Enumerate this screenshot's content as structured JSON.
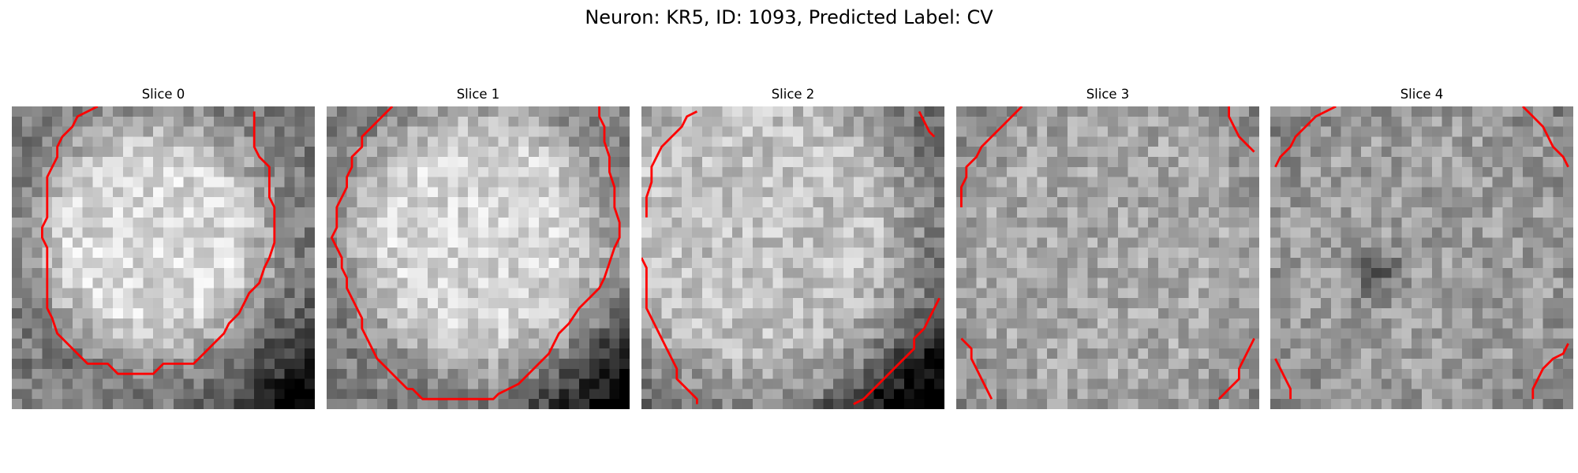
{
  "title": "Neuron: KR5, ID: 1093, Predicted Label: CV",
  "colors": {
    "contour": "#ff0000",
    "background": "#ffffff"
  },
  "colormap": "gray",
  "grid_size": 30,
  "slices": [
    {
      "label": "Slice 0",
      "brightness": {
        "center": 0.85,
        "edge": 0.48,
        "cx": 14,
        "cy": 13,
        "r": 12,
        "dark_corner": "bottom-right"
      },
      "contours": [
        [
          [
            8.5,
            0
          ],
          [
            7.5,
            0.5
          ],
          [
            6.5,
            1
          ],
          [
            6,
            2
          ],
          [
            5,
            3
          ],
          [
            4.5,
            4
          ],
          [
            4.5,
            5
          ],
          [
            4,
            6
          ],
          [
            3.5,
            7
          ],
          [
            3.5,
            9
          ],
          [
            3.5,
            11
          ],
          [
            3,
            12
          ],
          [
            3,
            13
          ],
          [
            3.5,
            14
          ],
          [
            3.5,
            16
          ],
          [
            3.5,
            18
          ],
          [
            3.5,
            20
          ],
          [
            4,
            21
          ],
          [
            4.5,
            22.5
          ],
          [
            5.5,
            23.5
          ],
          [
            6.5,
            24.5
          ],
          [
            7.5,
            25.5
          ],
          [
            8.5,
            25.5
          ],
          [
            9.5,
            25.5
          ],
          [
            10.5,
            26.5
          ],
          [
            11.5,
            26.5
          ],
          [
            13,
            26.5
          ],
          [
            14,
            26.5
          ],
          [
            15,
            25.5
          ],
          [
            16.5,
            25.5
          ],
          [
            18,
            25.5
          ],
          [
            19,
            24.5
          ],
          [
            20,
            23.5
          ],
          [
            21,
            22.5
          ],
          [
            21.5,
            21.5
          ],
          [
            22.5,
            20.5
          ],
          [
            23,
            19.5
          ],
          [
            23.5,
            18.5
          ],
          [
            24.5,
            17.5
          ],
          [
            25,
            16
          ],
          [
            25.5,
            15
          ],
          [
            26,
            13.5
          ],
          [
            26,
            12
          ],
          [
            26,
            10
          ],
          [
            25.5,
            9
          ],
          [
            25.5,
            7.5
          ],
          [
            25.5,
            6
          ],
          [
            24.5,
            5
          ],
          [
            24,
            4
          ],
          [
            24,
            2.5
          ],
          [
            24,
            0.5
          ]
        ]
      ]
    },
    {
      "label": "Slice 1",
      "brightness": {
        "center": 0.84,
        "edge": 0.5,
        "cx": 15,
        "cy": 13,
        "r": 13,
        "dark_corner": "bottom-right"
      },
      "contours": [
        [
          [
            6.5,
            0
          ],
          [
            5.5,
            1
          ],
          [
            4.5,
            2
          ],
          [
            3.5,
            3
          ],
          [
            3.5,
            4
          ],
          [
            2.5,
            5
          ],
          [
            2.5,
            6
          ],
          [
            2,
            7
          ],
          [
            2,
            8
          ],
          [
            1.5,
            9
          ],
          [
            1,
            10
          ],
          [
            1,
            11
          ],
          [
            1,
            12
          ],
          [
            0.5,
            13
          ],
          [
            1,
            14
          ],
          [
            1.5,
            15
          ],
          [
            1.5,
            16
          ],
          [
            2,
            17
          ],
          [
            2,
            18
          ],
          [
            2.5,
            19
          ],
          [
            3,
            20
          ],
          [
            3.5,
            21
          ],
          [
            3.5,
            22
          ],
          [
            4,
            23
          ],
          [
            4.5,
            24
          ],
          [
            5,
            25
          ],
          [
            6,
            26
          ],
          [
            7,
            27
          ],
          [
            8,
            28
          ],
          [
            8.5,
            28
          ],
          [
            9.5,
            29
          ],
          [
            10.5,
            29
          ],
          [
            12,
            29
          ],
          [
            13.5,
            29
          ],
          [
            15,
            29
          ],
          [
            16.5,
            29
          ],
          [
            17,
            28.5
          ],
          [
            18,
            28
          ],
          [
            19,
            27.5
          ],
          [
            20,
            26.5
          ],
          [
            21,
            25.5
          ],
          [
            22,
            24.5
          ],
          [
            22.5,
            23.5
          ],
          [
            23,
            22.5
          ],
          [
            24,
            21.5
          ],
          [
            25,
            20
          ],
          [
            26,
            19
          ],
          [
            27,
            18
          ],
          [
            27.5,
            17
          ],
          [
            28,
            15.5
          ],
          [
            28.5,
            14
          ],
          [
            29,
            13
          ],
          [
            29,
            11.5
          ],
          [
            28.5,
            10
          ],
          [
            28.5,
            8
          ],
          [
            28,
            6.5
          ],
          [
            28,
            5
          ],
          [
            27.5,
            3.5
          ],
          [
            27.5,
            2
          ],
          [
            27,
            1
          ],
          [
            27,
            0
          ]
        ]
      ]
    },
    {
      "label": "Slice 2",
      "brightness": {
        "center": 0.76,
        "edge": 0.4,
        "cx": 11,
        "cy": 12,
        "r": 17,
        "dark_corner": "bottom-right"
      },
      "contours": [
        [
          [
            5.5,
            0.5
          ],
          [
            4.5,
            1
          ],
          [
            4,
            2
          ],
          [
            3,
            3
          ],
          [
            2,
            4
          ],
          [
            1.5,
            5
          ],
          [
            1,
            6
          ],
          [
            1,
            7.5
          ],
          [
            0.5,
            9
          ],
          [
            0.5,
            11
          ]
        ],
        [
          [
            0,
            15
          ],
          [
            0.5,
            16
          ],
          [
            0.5,
            18
          ],
          [
            0.5,
            20
          ],
          [
            1,
            21
          ],
          [
            1.5,
            22
          ],
          [
            2,
            23
          ],
          [
            2.5,
            24
          ],
          [
            3,
            25
          ],
          [
            3.5,
            26
          ],
          [
            3.5,
            27
          ],
          [
            4.5,
            28
          ],
          [
            5.5,
            29
          ],
          [
            5.5,
            29.5
          ]
        ],
        [
          [
            27.5,
            0.5
          ],
          [
            28,
            1.5
          ],
          [
            28.5,
            2.5
          ],
          [
            29,
            3
          ]
        ],
        [
          [
            21,
            29.5
          ],
          [
            22,
            29
          ],
          [
            23,
            28
          ],
          [
            24,
            27
          ],
          [
            25,
            26
          ],
          [
            26,
            25
          ],
          [
            27,
            24
          ],
          [
            27,
            23
          ],
          [
            28,
            22
          ],
          [
            28.5,
            21
          ],
          [
            29,
            20
          ],
          [
            29.5,
            19
          ]
        ]
      ]
    },
    {
      "label": "Slice 3",
      "brightness": {
        "center": 0.66,
        "edge": 0.5,
        "cx": 15,
        "cy": 15,
        "r": 18,
        "dark_corner": "none"
      },
      "contours": [
        [
          [
            6.5,
            0
          ],
          [
            5.5,
            1
          ],
          [
            4.5,
            2
          ],
          [
            3.5,
            3
          ],
          [
            2.5,
            4
          ],
          [
            2,
            5
          ],
          [
            1,
            6
          ],
          [
            1,
            7
          ],
          [
            0.5,
            8
          ],
          [
            0.5,
            10
          ]
        ],
        [
          [
            27,
            0
          ],
          [
            27,
            1
          ],
          [
            27.5,
            2
          ],
          [
            28,
            3
          ],
          [
            29,
            4
          ],
          [
            29.5,
            4.5
          ]
        ],
        [
          [
            0.5,
            23
          ],
          [
            1.5,
            24
          ],
          [
            1.5,
            25
          ],
          [
            2,
            26
          ],
          [
            2.5,
            27
          ],
          [
            3,
            28
          ],
          [
            3.5,
            29
          ]
        ],
        [
          [
            26,
            29
          ],
          [
            27,
            28
          ],
          [
            28,
            27
          ],
          [
            28,
            26
          ],
          [
            28.5,
            25
          ],
          [
            29,
            24
          ],
          [
            29.5,
            23
          ]
        ]
      ]
    },
    {
      "label": "Slice 4",
      "brightness": {
        "center": 0.62,
        "edge": 0.5,
        "cx": 15,
        "cy": 15,
        "r": 18,
        "dark_corner": "none",
        "dark_spot": [
          10,
          16,
          4
        ]
      },
      "contours": [
        [
          [
            6.5,
            0
          ],
          [
            5.5,
            0.5
          ],
          [
            4.5,
            1
          ],
          [
            3.5,
            2
          ],
          [
            2.5,
            3
          ],
          [
            2,
            4
          ],
          [
            1,
            5
          ],
          [
            0.5,
            6
          ]
        ],
        [
          [
            25,
            0
          ],
          [
            26,
            1
          ],
          [
            27,
            2
          ],
          [
            27.5,
            3
          ],
          [
            28,
            4
          ],
          [
            29,
            5
          ],
          [
            29.5,
            6
          ]
        ],
        [
          [
            0.5,
            25
          ],
          [
            1,
            26
          ],
          [
            1.5,
            27
          ],
          [
            2,
            28
          ],
          [
            2,
            29
          ]
        ],
        [
          [
            26,
            29
          ],
          [
            26,
            28
          ],
          [
            26.5,
            27
          ],
          [
            27,
            26
          ],
          [
            28,
            25
          ],
          [
            29,
            24.5
          ],
          [
            29.5,
            23.5
          ]
        ]
      ]
    }
  ]
}
